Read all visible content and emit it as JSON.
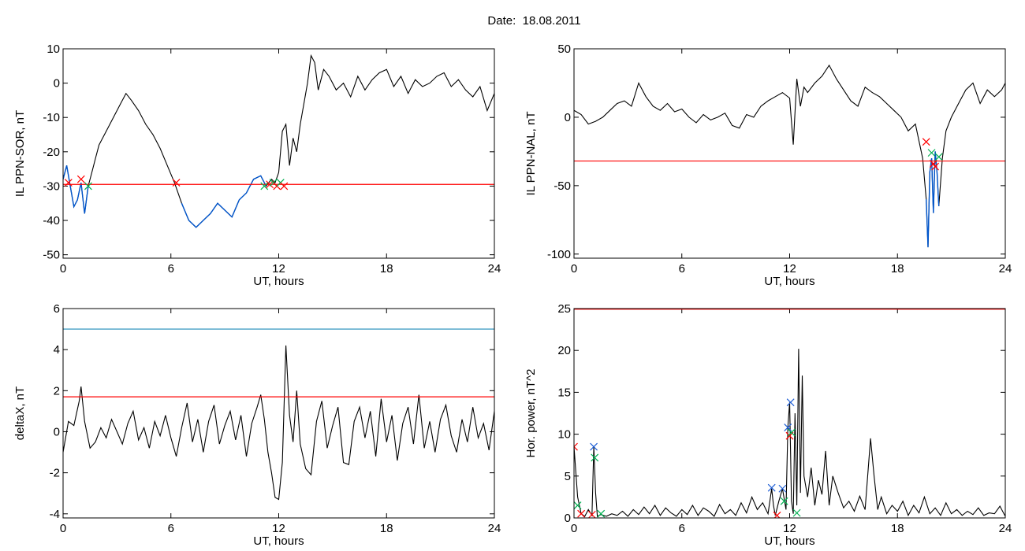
{
  "figure": {
    "title": "Date:  18.08.2011"
  },
  "colors": {
    "trace": "#000000",
    "threshold": "#ff0000",
    "highlight": "#0055cc",
    "limit": "#1e8bb8",
    "marker_red": "#ff0000",
    "marker_green": "#00b050",
    "marker_blue": "#1f5fd6"
  },
  "chart_data": [
    {
      "id": "top-left",
      "type": "line",
      "xlabel": "UT, hours",
      "ylabel": "IL PPN-SOR, nT",
      "xlim": [
        0,
        24
      ],
      "ylim": [
        -51,
        10
      ],
      "xticks": [
        0,
        6,
        12,
        18,
        24
      ],
      "yticks": [
        10,
        0,
        -10,
        -20,
        -30,
        -40,
        -50
      ],
      "threshold": -29.5,
      "series": [
        {
          "x": [
            0,
            0.2,
            0.4,
            0.6,
            0.8,
            1.0,
            1.2,
            1.4,
            1.6,
            1.8,
            2.0,
            2.4,
            2.8,
            3.2,
            3.5,
            3.8,
            4.2,
            4.6,
            5.0,
            5.4,
            5.8,
            6.2,
            6.6,
            7.0,
            7.4,
            7.8,
            8.2,
            8.6,
            9.0,
            9.4,
            9.8,
            10.2,
            10.6,
            11.0,
            11.3,
            11.6,
            11.8,
            12.0,
            12.1,
            12.2,
            12.4,
            12.6,
            12.8,
            13.0,
            13.2,
            13.4,
            13.6,
            13.8,
            14.0,
            14.2,
            14.5,
            14.8,
            15.2,
            15.6,
            16.0,
            16.4,
            16.8,
            17.2,
            17.6,
            18.0,
            18.4,
            18.8,
            19.2,
            19.6,
            20.0,
            20.4,
            20.8,
            21.2,
            21.6,
            22.0,
            22.4,
            22.8,
            23.2,
            23.6,
            24.0
          ],
          "y": [
            -28,
            -24,
            -30,
            -36,
            -34,
            -29,
            -38,
            -30,
            -26,
            -22,
            -18,
            -14,
            -10,
            -6,
            -3,
            -5,
            -8,
            -12,
            -15,
            -19,
            -24,
            -29,
            -35,
            -40,
            -42,
            -40,
            -38,
            -35,
            -37,
            -39,
            -34,
            -32,
            -28,
            -27,
            -30,
            -28,
            -29,
            -26,
            -20,
            -14,
            -12,
            -24,
            -16,
            -20,
            -12,
            -6,
            0,
            8,
            6,
            -2,
            4,
            2,
            -2,
            0,
            -4,
            2,
            -2,
            1,
            3,
            4,
            -1,
            2,
            -3,
            1,
            -1,
            0,
            2,
            3,
            -1,
            1,
            -2,
            -4,
            -1,
            -8,
            -3
          ]
        }
      ],
      "highlight_x": [
        [
          0,
          1.4
        ],
        [
          6.3,
          11.5
        ]
      ],
      "markers": [
        {
          "x": 0.3,
          "y": -29,
          "color": "red"
        },
        {
          "x": 1.0,
          "y": -28,
          "color": "red"
        },
        {
          "x": 1.4,
          "y": -30,
          "color": "green"
        },
        {
          "x": 6.3,
          "y": -29,
          "color": "red"
        },
        {
          "x": 11.2,
          "y": -30,
          "color": "green"
        },
        {
          "x": 11.5,
          "y": -29.5,
          "color": "red"
        },
        {
          "x": 11.7,
          "y": -29,
          "color": "green"
        },
        {
          "x": 11.9,
          "y": -30,
          "color": "red"
        },
        {
          "x": 12.1,
          "y": -29,
          "color": "green"
        },
        {
          "x": 12.3,
          "y": -30,
          "color": "red"
        }
      ]
    },
    {
      "id": "top-right",
      "type": "line",
      "xlabel": "UT, hours",
      "ylabel": "IL PPN-NAL, nT",
      "xlim": [
        0,
        24
      ],
      "ylim": [
        -103,
        50
      ],
      "xticks": [
        0,
        6,
        12,
        18,
        24
      ],
      "yticks": [
        50,
        0,
        -50,
        -100
      ],
      "threshold": -32,
      "series": [
        {
          "x": [
            0,
            0.4,
            0.8,
            1.2,
            1.6,
            2.0,
            2.4,
            2.8,
            3.2,
            3.6,
            4.0,
            4.4,
            4.8,
            5.2,
            5.6,
            6.0,
            6.4,
            6.8,
            7.2,
            7.6,
            8.0,
            8.4,
            8.8,
            9.2,
            9.6,
            10.0,
            10.4,
            10.8,
            11.2,
            11.6,
            12.0,
            12.2,
            12.4,
            12.6,
            12.8,
            13.0,
            13.4,
            13.8,
            14.2,
            14.6,
            15.0,
            15.4,
            15.8,
            16.2,
            16.6,
            17.0,
            17.4,
            17.8,
            18.2,
            18.6,
            19.0,
            19.4,
            19.6,
            19.7,
            19.8,
            19.9,
            20.0,
            20.1,
            20.2,
            20.3,
            20.5,
            20.7,
            21.0,
            21.4,
            21.8,
            22.2,
            22.6,
            23.0,
            23.4,
            23.8,
            24.0
          ],
          "y": [
            5,
            2,
            -5,
            -3,
            0,
            5,
            10,
            12,
            8,
            25,
            15,
            8,
            5,
            10,
            4,
            6,
            0,
            -4,
            2,
            -2,
            0,
            3,
            -6,
            -8,
            2,
            0,
            8,
            12,
            15,
            18,
            14,
            -20,
            28,
            8,
            22,
            18,
            25,
            30,
            38,
            28,
            20,
            12,
            8,
            22,
            18,
            15,
            10,
            5,
            0,
            -10,
            -5,
            -30,
            -60,
            -95,
            -40,
            -30,
            -70,
            -25,
            -40,
            -65,
            -30,
            -10,
            0,
            10,
            20,
            25,
            10,
            20,
            15,
            20,
            25
          ]
        }
      ],
      "highlight_x": [
        [
          19.6,
          20.3
        ]
      ],
      "markers": [
        {
          "x": 19.6,
          "y": -18,
          "color": "red"
        },
        {
          "x": 19.9,
          "y": -26,
          "color": "green"
        },
        {
          "x": 20.0,
          "y": -34,
          "color": "red"
        },
        {
          "x": 20.1,
          "y": -36,
          "color": "red"
        },
        {
          "x": 20.3,
          "y": -29,
          "color": "green"
        }
      ]
    },
    {
      "id": "bottom-left",
      "type": "line",
      "xlabel": "UT, hours",
      "ylabel": "deltaX, nT",
      "xlim": [
        0,
        24
      ],
      "ylim": [
        -4.2,
        6
      ],
      "xticks": [
        0,
        6,
        12,
        18,
        24
      ],
      "yticks": [
        6,
        4,
        2,
        0,
        -2,
        -4
      ],
      "threshold": 1.7,
      "limit": 5.0,
      "series": [
        {
          "x": [
            0,
            0.3,
            0.6,
            0.9,
            1.0,
            1.2,
            1.5,
            1.8,
            2.1,
            2.4,
            2.7,
            3.0,
            3.3,
            3.6,
            3.9,
            4.2,
            4.5,
            4.8,
            5.1,
            5.4,
            5.7,
            6.0,
            6.3,
            6.6,
            6.9,
            7.2,
            7.5,
            7.8,
            8.1,
            8.4,
            8.7,
            9.0,
            9.3,
            9.6,
            9.9,
            10.2,
            10.5,
            10.8,
            11.0,
            11.2,
            11.4,
            11.6,
            11.8,
            12.0,
            12.2,
            12.4,
            12.6,
            12.8,
            13.0,
            13.2,
            13.5,
            13.8,
            14.1,
            14.4,
            14.7,
            15.0,
            15.3,
            15.6,
            15.9,
            16.2,
            16.5,
            16.8,
            17.1,
            17.4,
            17.7,
            18.0,
            18.3,
            18.6,
            18.9,
            19.2,
            19.5,
            19.8,
            20.1,
            20.4,
            20.7,
            21.0,
            21.3,
            21.6,
            21.9,
            22.2,
            22.5,
            22.8,
            23.1,
            23.4,
            23.7,
            24.0
          ],
          "y": [
            -1,
            0.5,
            0.3,
            1.5,
            2.2,
            0.5,
            -0.8,
            -0.5,
            0.2,
            -0.3,
            0.6,
            0,
            -0.6,
            0.4,
            1.0,
            -0.4,
            0.2,
            -0.8,
            0.5,
            -0.2,
            0.8,
            -0.3,
            -1.2,
            0.2,
            1.4,
            -0.5,
            0.6,
            -1.0,
            0.5,
            1.3,
            -0.6,
            0.3,
            1.0,
            -0.4,
            0.8,
            -1.2,
            0.4,
            1.2,
            1.8,
            0.6,
            -1.0,
            -2.0,
            -3.2,
            -3.3,
            -1.5,
            4.2,
            0.8,
            -0.5,
            2.0,
            -0.6,
            -1.8,
            -2.1,
            0.5,
            1.5,
            -0.8,
            0.3,
            1.2,
            -1.5,
            -1.6,
            0.5,
            1.2,
            -0.3,
            1.0,
            -1.2,
            1.6,
            -0.5,
            0.8,
            -1.4,
            0.4,
            1.2,
            -0.6,
            1.8,
            -0.8,
            0.5,
            -1.0,
            0.6,
            1.3,
            -0.2,
            -1.0,
            0.6,
            -0.5,
            1.2,
            -0.3,
            0.4,
            -0.9,
            1.0
          ]
        }
      ]
    },
    {
      "id": "bottom-right",
      "type": "line",
      "xlabel": "UT, hours",
      "ylabel": "Hor. power, nT^2",
      "xlim": [
        0,
        24
      ],
      "ylim": [
        0,
        25
      ],
      "xticks": [
        0,
        6,
        12,
        18,
        24
      ],
      "yticks": [
        25,
        20,
        15,
        10,
        5,
        0
      ],
      "threshold": 25,
      "series": [
        {
          "x": [
            0,
            0.2,
            0.4,
            0.6,
            0.8,
            1.0,
            1.1,
            1.2,
            1.3,
            1.5,
            1.8,
            2.1,
            2.4,
            2.7,
            3.0,
            3.3,
            3.6,
            3.9,
            4.2,
            4.5,
            4.8,
            5.1,
            5.4,
            5.7,
            6.0,
            6.3,
            6.6,
            6.9,
            7.2,
            7.5,
            7.8,
            8.1,
            8.4,
            8.7,
            9.0,
            9.3,
            9.6,
            9.9,
            10.2,
            10.5,
            10.8,
            11.0,
            11.1,
            11.2,
            11.4,
            11.6,
            11.8,
            11.9,
            12.0,
            12.1,
            12.2,
            12.3,
            12.4,
            12.5,
            12.6,
            12.7,
            12.8,
            13.0,
            13.2,
            13.4,
            13.6,
            13.8,
            14.0,
            14.2,
            14.4,
            14.7,
            15.0,
            15.3,
            15.6,
            15.9,
            16.2,
            16.5,
            16.7,
            16.9,
            17.1,
            17.4,
            17.7,
            18.0,
            18.3,
            18.6,
            18.9,
            19.2,
            19.5,
            19.8,
            20.1,
            20.4,
            20.7,
            21.0,
            21.3,
            21.6,
            21.9,
            22.2,
            22.5,
            22.8,
            23.1,
            23.4,
            23.7,
            24.0
          ],
          "y": [
            8.5,
            2.5,
            0.5,
            0.2,
            1.0,
            0.3,
            8.5,
            3.0,
            0.2,
            0.4,
            0.2,
            0.5,
            0.3,
            0.8,
            0.2,
            1.0,
            0.4,
            1.3,
            0.5,
            1.5,
            0.3,
            1.2,
            0.6,
            0.2,
            1.0,
            0.4,
            1.5,
            0.3,
            1.2,
            0.8,
            0.2,
            1.6,
            0.5,
            1.0,
            0.3,
            1.8,
            0.6,
            2.5,
            1.0,
            1.8,
            0.5,
            3.5,
            1.5,
            0.3,
            2.0,
            3.5,
            1.0,
            10.8,
            13.8,
            2.0,
            0.5,
            12.5,
            1.5,
            20.2,
            3.0,
            17.0,
            5.0,
            2.5,
            6.0,
            1.5,
            4.5,
            2.8,
            8.0,
            1.5,
            5.0,
            3.0,
            1.2,
            2.0,
            0.8,
            2.6,
            1.0,
            9.5,
            5.0,
            1.0,
            2.5,
            0.5,
            1.5,
            0.8,
            2.0,
            0.3,
            1.5,
            0.6,
            2.5,
            0.5,
            1.2,
            0.3,
            1.8,
            0.5,
            1.0,
            0.3,
            0.8,
            0.4,
            1.2,
            0.3,
            0.6,
            0.5,
            1.4,
            0.2
          ]
        }
      ],
      "markers": [
        {
          "x": 0.0,
          "y": 8.5,
          "color": "red"
        },
        {
          "x": 0.2,
          "y": 1.5,
          "color": "green"
        },
        {
          "x": 0.4,
          "y": 0.5,
          "color": "red"
        },
        {
          "x": 1.0,
          "y": 0.4,
          "color": "red"
        },
        {
          "x": 1.1,
          "y": 8.5,
          "color": "blue"
        },
        {
          "x": 1.15,
          "y": 7.2,
          "color": "green"
        },
        {
          "x": 1.5,
          "y": 0.5,
          "color": "green"
        },
        {
          "x": 11.0,
          "y": 3.6,
          "color": "blue"
        },
        {
          "x": 11.3,
          "y": 0.3,
          "color": "red"
        },
        {
          "x": 11.6,
          "y": 3.5,
          "color": "blue"
        },
        {
          "x": 11.7,
          "y": 2.0,
          "color": "green"
        },
        {
          "x": 11.9,
          "y": 10.8,
          "color": "blue"
        },
        {
          "x": 12.0,
          "y": 9.8,
          "color": "red"
        },
        {
          "x": 12.05,
          "y": 13.8,
          "color": "blue"
        },
        {
          "x": 12.1,
          "y": 10.2,
          "color": "green"
        },
        {
          "x": 12.4,
          "y": 0.6,
          "color": "green"
        }
      ]
    }
  ]
}
